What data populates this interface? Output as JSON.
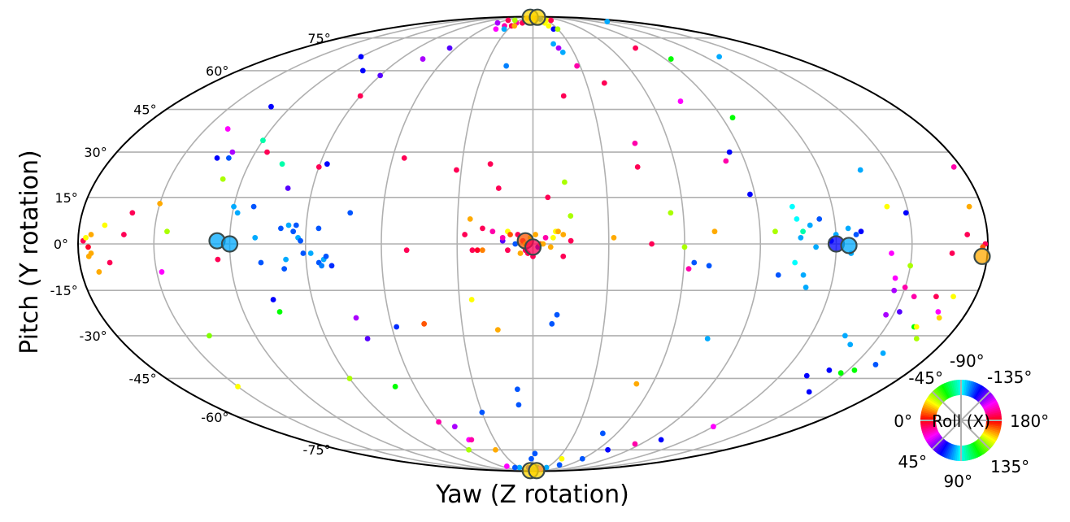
{
  "chart_data": {
    "type": "scatter",
    "projection": "mollweide",
    "xlabel": "Yaw (Z rotation)",
    "ylabel": "Pitch (Y rotation)",
    "x_range_deg": [
      -180,
      180
    ],
    "y_range_deg": [
      -90,
      90
    ],
    "grid": true,
    "y_ticks": [
      {
        "deg": 75,
        "label": "75°"
      },
      {
        "deg": 60,
        "label": "60°"
      },
      {
        "deg": 45,
        "label": "45°"
      },
      {
        "deg": 30,
        "label": "30°"
      },
      {
        "deg": 15,
        "label": "15°"
      },
      {
        "deg": 0,
        "label": "0°"
      },
      {
        "deg": -15,
        "label": "-15°"
      },
      {
        "deg": -30,
        "label": "-30°"
      },
      {
        "deg": -45,
        "label": "-45°"
      },
      {
        "deg": -60,
        "label": "-60°"
      },
      {
        "deg": -75,
        "label": "-75°"
      }
    ],
    "color_encoding": "Roll (X)",
    "color_legend": {
      "title": "Roll (X)",
      "placement": "bottom-right",
      "labels": [
        {
          "angle": 0,
          "label": "0°"
        },
        {
          "angle": 45,
          "label": "45°"
        },
        {
          "angle": 90,
          "label": "90°"
        },
        {
          "angle": 135,
          "label": "135°"
        },
        {
          "angle": 180,
          "label": "180°"
        },
        {
          "angle": -135,
          "label": "-135°"
        },
        {
          "angle": -90,
          "label": "-90°"
        },
        {
          "angle": -45,
          "label": "-45°"
        }
      ]
    },
    "highlighted": [
      {
        "yaw": -125,
        "pitch": 1,
        "roll": 100
      },
      {
        "yaw": -120,
        "pitch": 0,
        "roll": -80
      },
      {
        "yaw": -3,
        "pitch": 1,
        "roll": 10
      },
      {
        "yaw": 0,
        "pitch": -1,
        "roll": 170
      },
      {
        "yaw": 120,
        "pitch": 0,
        "roll": -60
      },
      {
        "yaw": 125,
        "pitch": -0.5,
        "roll": 100
      },
      {
        "yaw": 178,
        "pitch": -4,
        "roll": 20
      },
      {
        "yaw": -15,
        "pitch": 89,
        "roll": 25
      },
      {
        "yaw": 25,
        "pitch": 89,
        "roll": 25
      },
      {
        "yaw": -15,
        "pitch": -89,
        "roll": 25
      },
      {
        "yaw": 20,
        "pitch": -89,
        "roll": 25
      }
    ],
    "points": [
      [
        -178,
        1,
        170
      ],
      [
        -177,
        2,
        30
      ],
      [
        -176,
        -1,
        175
      ],
      [
        -175,
        -3,
        20
      ],
      [
        -173,
        -9,
        20
      ],
      [
        -170,
        6,
        30
      ],
      [
        -168,
        -6,
        170
      ],
      [
        -162,
        3,
        170
      ],
      [
        -160,
        10,
        170
      ],
      [
        -150,
        13,
        20
      ],
      [
        -148,
        -9,
        150
      ],
      [
        -145,
        4,
        40
      ],
      [
        -140,
        -30,
        45
      ],
      [
        -130,
        46,
        120
      ],
      [
        -130,
        30,
        140
      ],
      [
        -130,
        28,
        -70
      ],
      [
        -128,
        21,
        40
      ],
      [
        -125,
        -5,
        170
      ],
      [
        -120,
        12,
        -80
      ],
      [
        -118,
        10,
        -80
      ],
      [
        -112,
        12,
        -70
      ],
      [
        -110,
        2,
        100
      ],
      [
        -108,
        -6,
        110
      ],
      [
        -106,
        26,
        -100
      ],
      [
        -106,
        -18,
        120
      ],
      [
        -105,
        -22,
        60
      ],
      [
        -104,
        60,
        120
      ],
      [
        -100,
        18,
        -50
      ],
      [
        -100,
        5,
        110
      ],
      [
        -99,
        -8,
        110
      ],
      [
        -98,
        -5,
        100
      ],
      [
        -97,
        6,
        100
      ],
      [
        -95,
        4,
        110
      ],
      [
        -94,
        6,
        110
      ],
      [
        -93,
        2,
        100
      ],
      [
        -92,
        1,
        110
      ],
      [
        -91,
        -3,
        110
      ],
      [
        -90,
        58,
        130
      ],
      [
        -90,
        50,
        170
      ],
      [
        -90,
        25,
        170
      ],
      [
        -88,
        -3,
        -80
      ],
      [
        -87,
        26,
        -60
      ],
      [
        -85,
        5,
        -70
      ],
      [
        -85,
        -6,
        -70
      ],
      [
        -84,
        -7,
        -75
      ],
      [
        -83,
        -5,
        -80
      ],
      [
        -82,
        -4,
        -70
      ],
      [
        -80,
        -7,
        -65
      ],
      [
        -75,
        65,
        140
      ],
      [
        -74,
        -24,
        140
      ],
      [
        -73,
        10,
        -70
      ],
      [
        -72,
        -31,
        130
      ],
      [
        -70,
        -48,
        60
      ],
      [
        -65,
        70,
        130
      ],
      [
        -60,
        -62,
        160
      ],
      [
        -58,
        -27,
        -65
      ],
      [
        -55,
        28,
        170
      ],
      [
        -52,
        -64,
        140
      ],
      [
        -50,
        -70,
        150
      ],
      [
        -50,
        -2,
        170
      ],
      [
        -48,
        -70,
        160
      ],
      [
        -46,
        -26,
        10
      ],
      [
        -45,
        80,
        150
      ],
      [
        -40,
        82,
        160
      ],
      [
        -35,
        80,
        -80
      ],
      [
        -32,
        24,
        170
      ],
      [
        -30,
        82,
        170
      ],
      [
        -30,
        -58,
        -70
      ],
      [
        -28,
        84,
        -20
      ],
      [
        -27,
        3,
        170
      ],
      [
        -26,
        82,
        20
      ],
      [
        -25,
        8,
        20
      ],
      [
        -25,
        -18,
        30
      ],
      [
        -24,
        -2,
        170
      ],
      [
        -22,
        -2,
        175
      ],
      [
        -20,
        5,
        170
      ],
      [
        -20,
        -2,
        15
      ],
      [
        -18,
        84,
        170
      ],
      [
        -18,
        26,
        170
      ],
      [
        -17,
        62,
        -75
      ],
      [
        -16,
        4,
        160
      ],
      [
        -15,
        -28,
        20
      ],
      [
        -14,
        18,
        170
      ],
      [
        -12,
        1,
        130
      ],
      [
        -12,
        2,
        160
      ],
      [
        -10,
        4,
        30
      ],
      [
        -10,
        -2,
        170
      ],
      [
        -9,
        3,
        10
      ],
      [
        -8,
        -49,
        -70
      ],
      [
        -8,
        -55,
        -70
      ],
      [
        -7,
        0,
        -70
      ],
      [
        -6,
        3,
        170
      ],
      [
        -5,
        88,
        10
      ],
      [
        -5,
        -3,
        20
      ],
      [
        -4,
        1,
        170
      ],
      [
        -3,
        0,
        25
      ],
      [
        -3,
        -2,
        170
      ],
      [
        -2,
        -3,
        170
      ],
      [
        -2,
        -80,
        -70
      ],
      [
        -1,
        2,
        40
      ],
      [
        0,
        -4,
        170
      ],
      [
        1,
        3,
        20
      ],
      [
        2,
        -1,
        120
      ],
      [
        2,
        -77,
        -70
      ],
      [
        3,
        0,
        10
      ],
      [
        4,
        0,
        20
      ],
      [
        5,
        2,
        160
      ],
      [
        6,
        15,
        170
      ],
      [
        7,
        -1,
        20
      ],
      [
        8,
        2,
        30
      ],
      [
        8,
        -26,
        -70
      ],
      [
        9,
        4,
        30
      ],
      [
        10,
        4,
        20
      ],
      [
        10,
        -23,
        -70
      ],
      [
        12,
        3,
        20
      ],
      [
        12,
        -4,
        170
      ],
      [
        13,
        20,
        40
      ],
      [
        15,
        9,
        40
      ],
      [
        15,
        1,
        170
      ],
      [
        16,
        50,
        170
      ],
      [
        17,
        72,
        -80
      ],
      [
        20,
        70,
        140
      ],
      [
        22,
        68,
        -80
      ],
      [
        25,
        80,
        -60
      ],
      [
        28,
        62,
        160
      ],
      [
        30,
        80,
        40
      ],
      [
        32,
        2,
        20
      ],
      [
        40,
        55,
        170
      ],
      [
        44,
        25,
        170
      ],
      [
        45,
        33,
        160
      ],
      [
        47,
        0,
        170
      ],
      [
        50,
        -67,
        -70
      ],
      [
        52,
        -47,
        20
      ],
      [
        55,
        10,
        40
      ],
      [
        60,
        -1,
        40
      ],
      [
        62,
        -8,
        160
      ],
      [
        64,
        -6,
        -70
      ],
      [
        70,
        -7,
        -70
      ],
      [
        72,
        4,
        20
      ],
      [
        75,
        48,
        150
      ],
      [
        76,
        -31,
        -80
      ],
      [
        80,
        70,
        170
      ],
      [
        82,
        27,
        160
      ],
      [
        85,
        30,
        -60
      ],
      [
        88,
        16,
        -60
      ],
      [
        94,
        65,
        -120
      ],
      [
        95,
        42,
        -120
      ],
      [
        96,
        4,
        40
      ],
      [
        98,
        -10,
        -70
      ],
      [
        104,
        12,
        -90
      ],
      [
        104,
        -6,
        -90
      ],
      [
        105,
        8,
        -90
      ],
      [
        106,
        2,
        100
      ],
      [
        107,
        4,
        -100
      ],
      [
        108,
        -10,
        100
      ],
      [
        110,
        -14,
        -80
      ],
      [
        110,
        6,
        -80
      ],
      [
        112,
        -1,
        -80
      ],
      [
        114,
        8,
        -70
      ],
      [
        118,
        1,
        -60
      ],
      [
        120,
        3,
        -80
      ],
      [
        125,
        5,
        -80
      ],
      [
        126,
        -3,
        -80
      ],
      [
        128,
        3,
        110
      ],
      [
        130,
        4,
        -60
      ],
      [
        130,
        66,
        -80
      ],
      [
        133,
        -44,
        -60
      ],
      [
        135,
        -30,
        100
      ],
      [
        137,
        24,
        -80
      ],
      [
        140,
        -33,
        100
      ],
      [
        141,
        -42,
        120
      ],
      [
        142,
        85,
        100
      ],
      [
        142,
        12,
        30
      ],
      [
        142,
        -3,
        150
      ],
      [
        144,
        -50,
        -60
      ],
      [
        145,
        -11,
        150
      ],
      [
        146,
        -15,
        140
      ],
      [
        147,
        -23,
        140
      ],
      [
        148,
        -43,
        60
      ],
      [
        149,
        10,
        120
      ],
      [
        150,
        -14,
        160
      ],
      [
        150,
        -7,
        -140
      ],
      [
        152,
        -22,
        130
      ],
      [
        153,
        -42,
        60
      ],
      [
        155,
        -17,
        160
      ],
      [
        158,
        -36,
        100
      ],
      [
        160,
        -40,
        110
      ],
      [
        162,
        -27,
        60
      ],
      [
        163,
        -27,
        30
      ],
      [
        164,
        -17,
        170
      ],
      [
        166,
        -3,
        170
      ],
      [
        167,
        -31,
        40
      ],
      [
        168,
        -22,
        150
      ],
      [
        170,
        -24,
        25
      ],
      [
        171,
        -17,
        30
      ],
      [
        172,
        3,
        170
      ],
      [
        175,
        12,
        20
      ],
      [
        177,
        25,
        160
      ],
      [
        179,
        0,
        170
      ],
      [
        178,
        -1,
        10
      ],
      [
        -150,
        -48,
        30
      ],
      [
        -140,
        38,
        150
      ],
      [
        -135,
        28,
        -60
      ],
      [
        -120,
        34,
        -100
      ],
      [
        -120,
        66,
        120
      ],
      [
        -115,
        30,
        170
      ],
      [
        -90,
        -45,
        40
      ],
      [
        -60,
        84,
        140
      ],
      [
        -55,
        86,
        170
      ],
      [
        -40,
        86,
        40
      ],
      [
        -20,
        88,
        20
      ],
      [
        0,
        88,
        20
      ],
      [
        10,
        87,
        10
      ],
      [
        20,
        87,
        -70
      ],
      [
        30,
        86,
        30
      ],
      [
        40,
        86,
        170
      ],
      [
        -30,
        -86,
        -80
      ],
      [
        -40,
        -86,
        110
      ],
      [
        -50,
        -85,
        150
      ],
      [
        -10,
        -86,
        130
      ],
      [
        0,
        -87,
        -70
      ],
      [
        10,
        -86,
        130
      ],
      [
        20,
        -87,
        150
      ],
      [
        30,
        -86,
        100
      ],
      [
        45,
        -84,
        -70
      ],
      [
        60,
        -80,
        -70
      ],
      [
        70,
        -75,
        -60
      ],
      [
        85,
        -72,
        160
      ],
      [
        100,
        -70,
        -60
      ],
      [
        120,
        -64,
        150
      ],
      [
        -175,
        3,
        20
      ],
      [
        -176,
        -4,
        20
      ],
      [
        20,
        84,
        30
      ],
      [
        22,
        82,
        30
      ],
      [
        -60,
        -75,
        40
      ],
      [
        -35,
        -75,
        20
      ],
      [
        35,
        -80,
        30
      ]
    ]
  }
}
